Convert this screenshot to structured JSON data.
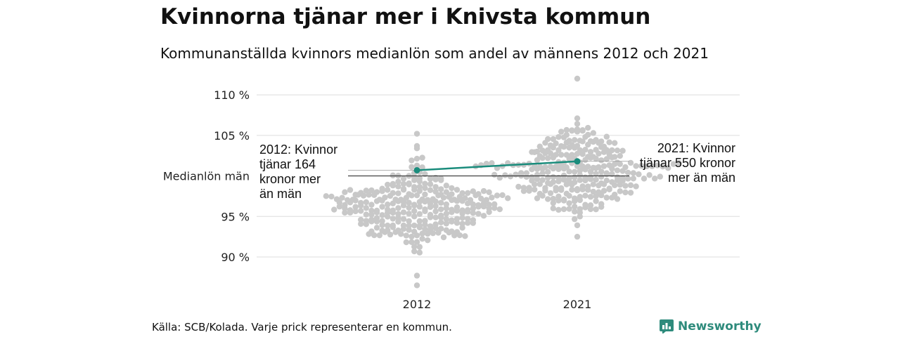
{
  "header": {
    "title": "Kvinnorna tjänar mer i Knivsta kommun",
    "subtitle": "Kommunanställda kvinnors medianlön som andel av männens 2012 och 2021"
  },
  "footer": {
    "source": "Källa: SCB/Kolada. Varje prick representerar en kommun.",
    "brand": "Newsworthy"
  },
  "colors": {
    "dots": "#c8c8c8",
    "highlight": "#1a8c7c",
    "grid": "#dddddd",
    "reference": "#333333",
    "brand": "#2e8b7c"
  },
  "chart_data": {
    "type": "scatter",
    "subtype": "beeswarm",
    "categories": [
      "2012",
      "2021"
    ],
    "y_ticks": [
      {
        "value": 90,
        "label": "90 %"
      },
      {
        "value": 95,
        "label": "95 %"
      },
      {
        "value": 105,
        "label": "105 %"
      },
      {
        "value": 110,
        "label": "110 %"
      }
    ],
    "ylim": [
      85.5,
      112
    ],
    "grid": true,
    "reference_line": {
      "value": 100,
      "label": "Medianlön män"
    },
    "series": [
      {
        "name": "",
        "points": [
          {
            "x": "2012",
            "y": 100.7
          },
          {
            "x": "2021",
            "y": 101.8
          }
        ]
      }
    ],
    "annotations": [
      {
        "category": "2012",
        "lines": [
          "2012: Kvinnor",
          "tjänar 164",
          "kronor mer",
          "än män"
        ]
      },
      {
        "category": "2021",
        "lines": [
          "2021: Kvinnor",
          "tjänar 550 kronor",
          "mer än män"
        ]
      }
    ],
    "distributions": [
      {
        "category": "2012",
        "count": 290,
        "median": 96.3,
        "spread": 2.4,
        "min": 86.5,
        "max": 105.2
      },
      {
        "category": "2021",
        "count": 290,
        "median": 100.7,
        "spread": 2.5,
        "min": 92.5,
        "max": 112
      }
    ]
  }
}
